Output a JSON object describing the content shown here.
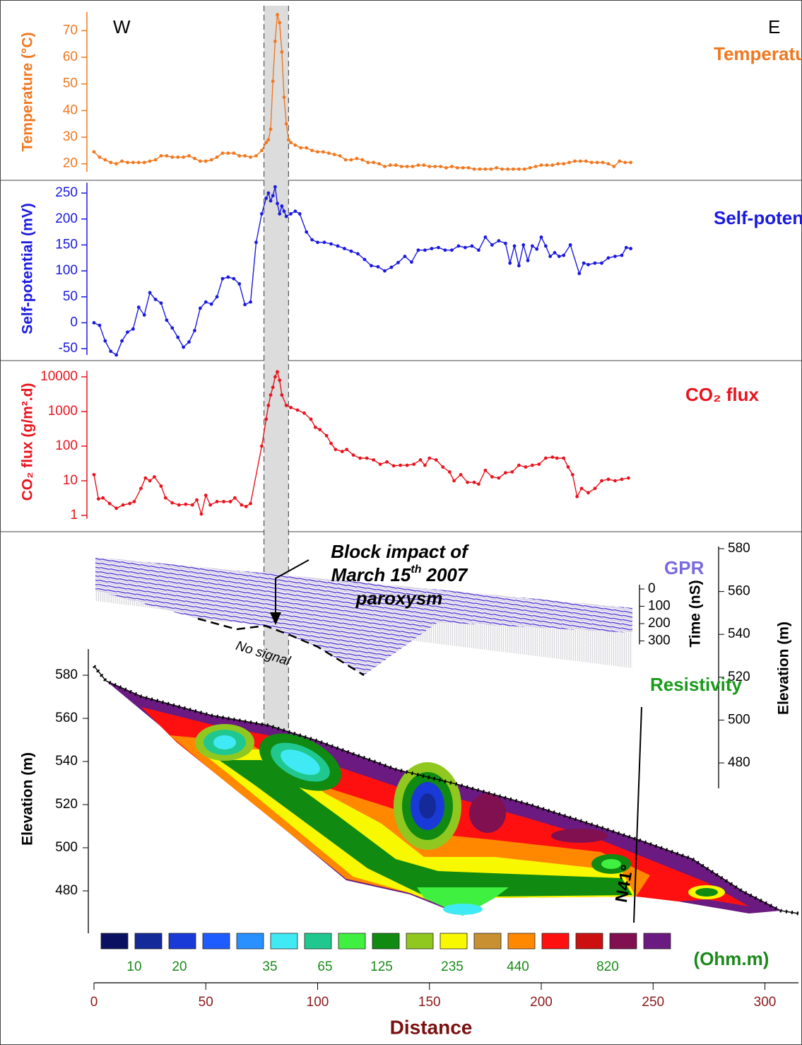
{
  "chart_data": [
    {
      "type": "line",
      "title": "Temperature",
      "ylabel": "Temperature (°C)",
      "color": "#f07820",
      "west": "W",
      "east": "E",
      "x": [
        0,
        2.5,
        5,
        7.5,
        10,
        12.5,
        15,
        17.5,
        20,
        22.5,
        25,
        27.5,
        30,
        32.5,
        35,
        37.5,
        40,
        42.5,
        45,
        47.5,
        50,
        52.5,
        55,
        57.5,
        60,
        62.5,
        65,
        67.5,
        70,
        72.5,
        75,
        77,
        78,
        79,
        80,
        81,
        82,
        83,
        84,
        85,
        86,
        87,
        88,
        90,
        92.5,
        95,
        97.5,
        100,
        102.5,
        105,
        107.5,
        110,
        112.5,
        115,
        117.5,
        120,
        122.5,
        125,
        127.5,
        130,
        132.5,
        135,
        137.5,
        140,
        142.5,
        145,
        147.5,
        150,
        152.5,
        155,
        157.5,
        160,
        162.5,
        165,
        167.5,
        170,
        172.5,
        175,
        177.5,
        180,
        182.5,
        185,
        187.5,
        190,
        192.5,
        195,
        197.5,
        200,
        202.5,
        205,
        207.5,
        210,
        212.5,
        215,
        217.5,
        220,
        222.5,
        225,
        227.5,
        230,
        232.5,
        235,
        237.5,
        240
      ],
      "values": [
        24.5,
        22.5,
        21.5,
        20.5,
        20,
        21,
        20.5,
        20.5,
        20.5,
        20.5,
        21,
        21.5,
        23,
        23,
        22.5,
        22.5,
        22.5,
        23,
        22,
        21,
        21,
        21.5,
        22.5,
        24,
        24,
        24,
        23,
        23,
        22.5,
        23,
        25,
        28,
        29,
        33,
        51,
        66,
        76,
        73,
        62,
        45,
        35,
        29,
        28,
        27,
        26,
        26,
        25,
        24.5,
        24.5,
        24,
        23.5,
        23,
        21.5,
        21.5,
        22,
        21.5,
        20.5,
        20.5,
        20,
        19,
        19.5,
        19.5,
        19,
        19,
        19,
        19.5,
        19.5,
        19,
        19,
        19,
        18.5,
        19,
        18.5,
        18.5,
        18.5,
        18,
        18,
        18,
        18,
        18.5,
        18,
        18,
        18,
        18,
        18,
        18.5,
        19,
        19.5,
        19.5,
        19.5,
        20,
        20,
        20.5,
        21,
        21,
        21,
        20.5,
        20.5,
        20.5,
        20,
        19,
        21,
        20.5,
        20.5
      ],
      "xlim": [
        0,
        315
      ],
      "ylim": [
        17,
        77
      ],
      "yticks": [
        20,
        30,
        40,
        50,
        60,
        70
      ]
    },
    {
      "type": "line",
      "title": "Self-potential",
      "ylabel": "Self-potential (mV)",
      "color": "#1a1ae0",
      "x": [
        0,
        2.5,
        5,
        7.5,
        10,
        12.5,
        15,
        17.5,
        20,
        22.5,
        25,
        27.5,
        30,
        32.5,
        35,
        37.5,
        40,
        42.5,
        45,
        47.5,
        50,
        52.5,
        55,
        57.5,
        60,
        62.5,
        65,
        67.5,
        70,
        72.5,
        75,
        77,
        78,
        79,
        80,
        81,
        82,
        83,
        84,
        85,
        86,
        88,
        90,
        92,
        95,
        97.5,
        100,
        103,
        106,
        109,
        112,
        115,
        118,
        121,
        124,
        127,
        130,
        133,
        136,
        139,
        142,
        145,
        148,
        151,
        154,
        157,
        160,
        163,
        166,
        169,
        172,
        175,
        178,
        181,
        184,
        186,
        188,
        190,
        192,
        194,
        196,
        198,
        200,
        202,
        204,
        206,
        208,
        210,
        213,
        217,
        219,
        221,
        224,
        227,
        230,
        233,
        236,
        238,
        240
      ],
      "values": [
        0,
        -5,
        -35,
        -55,
        -62,
        -35,
        -18,
        -12,
        30,
        15,
        58,
        45,
        38,
        5,
        -10,
        -28,
        -47,
        -37,
        -15,
        28,
        40,
        36,
        50,
        85,
        88,
        85,
        75,
        35,
        40,
        155,
        210,
        240,
        250,
        235,
        245,
        262,
        230,
        210,
        225,
        215,
        205,
        210,
        215,
        210,
        175,
        160,
        155,
        155,
        152,
        148,
        143,
        138,
        133,
        122,
        110,
        108,
        100,
        107,
        116,
        128,
        117,
        140,
        140,
        143,
        145,
        140,
        140,
        148,
        145,
        148,
        140,
        165,
        150,
        158,
        153,
        115,
        148,
        110,
        150,
        120,
        148,
        142,
        165,
        148,
        128,
        135,
        128,
        130,
        150,
        95,
        115,
        112,
        115,
        115,
        125,
        128,
        130,
        145,
        143
      ],
      "xlim": [
        0,
        315
      ],
      "ylim": [
        -62,
        270
      ],
      "yticks": [
        -50,
        0,
        50,
        100,
        150,
        200,
        250
      ]
    },
    {
      "type": "line",
      "title": "CO₂ flux",
      "ylabel": "CO₂ flux (g/m².d)",
      "color": "#e8141e",
      "log_scale": true,
      "x": [
        0,
        2,
        4,
        7,
        10,
        13,
        16,
        18,
        21,
        23,
        25,
        27,
        30,
        32,
        35,
        38,
        41,
        44,
        46,
        48,
        50,
        52,
        55,
        58,
        61,
        63,
        66,
        68,
        70,
        75,
        77,
        78,
        79,
        80,
        81,
        82,
        83,
        84,
        86,
        88,
        91,
        94,
        97,
        99,
        101,
        104,
        106,
        108,
        111,
        113,
        116,
        119,
        122,
        125,
        128,
        131,
        134,
        137,
        140,
        143,
        146,
        148,
        150,
        153,
        156,
        159,
        161,
        164,
        167,
        170,
        172,
        175,
        178,
        181,
        184,
        187,
        190,
        193,
        196,
        199,
        202,
        205,
        207,
        210,
        212,
        214,
        216,
        218,
        221,
        224,
        227,
        230,
        233,
        236,
        239
      ],
      "values": [
        15,
        3,
        3.2,
        2.2,
        1.6,
        2,
        2.2,
        2.5,
        6,
        12,
        10,
        13,
        7,
        3.2,
        2.3,
        2,
        2.1,
        2,
        2.8,
        1.1,
        3.8,
        2,
        2.5,
        2.5,
        2.5,
        3.2,
        2,
        1.8,
        2.2,
        100,
        600,
        1500,
        3000,
        5000,
        10000,
        14000,
        8000,
        3000,
        1500,
        1300,
        1100,
        900,
        600,
        350,
        300,
        200,
        120,
        80,
        70,
        80,
        55,
        45,
        45,
        40,
        30,
        35,
        27,
        28,
        28,
        30,
        40,
        28,
        45,
        40,
        25,
        18,
        10,
        15,
        9,
        9,
        8,
        20,
        13,
        12,
        17,
        18,
        28,
        25,
        28,
        30,
        45,
        48,
        45,
        45,
        25,
        15,
        3.5,
        6,
        4.5,
        6,
        10,
        11,
        10,
        11,
        12
      ],
      "xlim": [
        0,
        315
      ],
      "ylim": [
        0.8,
        15000
      ],
      "yticks": [
        1,
        10,
        100,
        1000,
        10000
      ]
    },
    {
      "type": "section",
      "gpr_title": "GPR",
      "resistivity_title": "Resistivity",
      "ylabel": "Elevation (m)",
      "ylim": [
        465,
        592
      ],
      "yticks": [
        480,
        500,
        520,
        540,
        560,
        580
      ],
      "y2label": "Elevation (m)",
      "y2lim": [
        468,
        581
      ],
      "y2ticks": [
        480,
        500,
        520,
        540,
        560,
        580
      ],
      "time_label": "Time (nS)",
      "time_lim": [
        -25,
        320
      ],
      "time_ticks": [
        0,
        100,
        200,
        300
      ],
      "xlabel": "Distance",
      "xlim": [
        0,
        315
      ],
      "xticks": [
        0,
        50,
        100,
        150,
        200,
        250,
        300
      ],
      "colorbar": {
        "colors": [
          "#0c1060",
          "#142a98",
          "#1a3ad8",
          "#1e5cff",
          "#2a90ff",
          "#40eaf4",
          "#20c890",
          "#40f040",
          "#108a10",
          "#90c820",
          "#f8f800",
          "#c89030",
          "#ff8800",
          "#ff1010",
          "#cc1010",
          "#801050",
          "#6a1a80"
        ],
        "labels": [
          10,
          20,
          35,
          65,
          125,
          235,
          440,
          820
        ],
        "unit": "(Ohm.m)"
      },
      "annotation": {
        "line1": "Block impact of",
        "line2": "March 15",
        "sup": "th",
        "line2_end": "2007",
        "line3": "paroxysm"
      },
      "no_signal": "No signal",
      "strike": "N41°"
    }
  ],
  "highlight": [
    76,
    87
  ]
}
